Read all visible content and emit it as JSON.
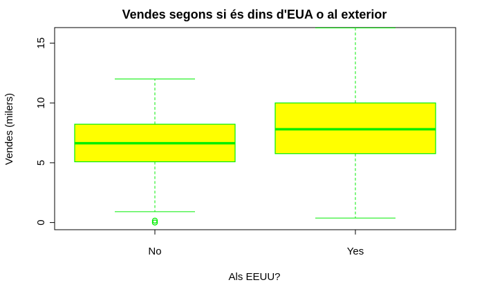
{
  "chart_data": {
    "type": "boxplot",
    "title": "Vendes segons si és dins d'EUA o al exterior",
    "xlabel": "Als EEUU?",
    "ylabel": "Vendes (milers)",
    "categories": [
      "No",
      "Yes"
    ],
    "yticks": [
      0,
      5,
      10,
      15
    ],
    "ylim": [
      -0.6,
      16.3
    ],
    "grid": false,
    "legend": "none",
    "boxes": [
      {
        "category": "No",
        "whisker_low": 0.91,
        "q1": 5.08,
        "median": 6.63,
        "q3": 8.22,
        "whisker_high": 12.0,
        "outliers": [
          0.0,
          0.16
        ]
      },
      {
        "category": "Yes",
        "whisker_low": 0.37,
        "q1": 5.76,
        "median": 7.8,
        "q3": 10.0,
        "whisker_high": 16.27,
        "outliers": []
      }
    ],
    "colors": {
      "box_fill": "#ffff00",
      "box_line": "#00ee00"
    }
  }
}
